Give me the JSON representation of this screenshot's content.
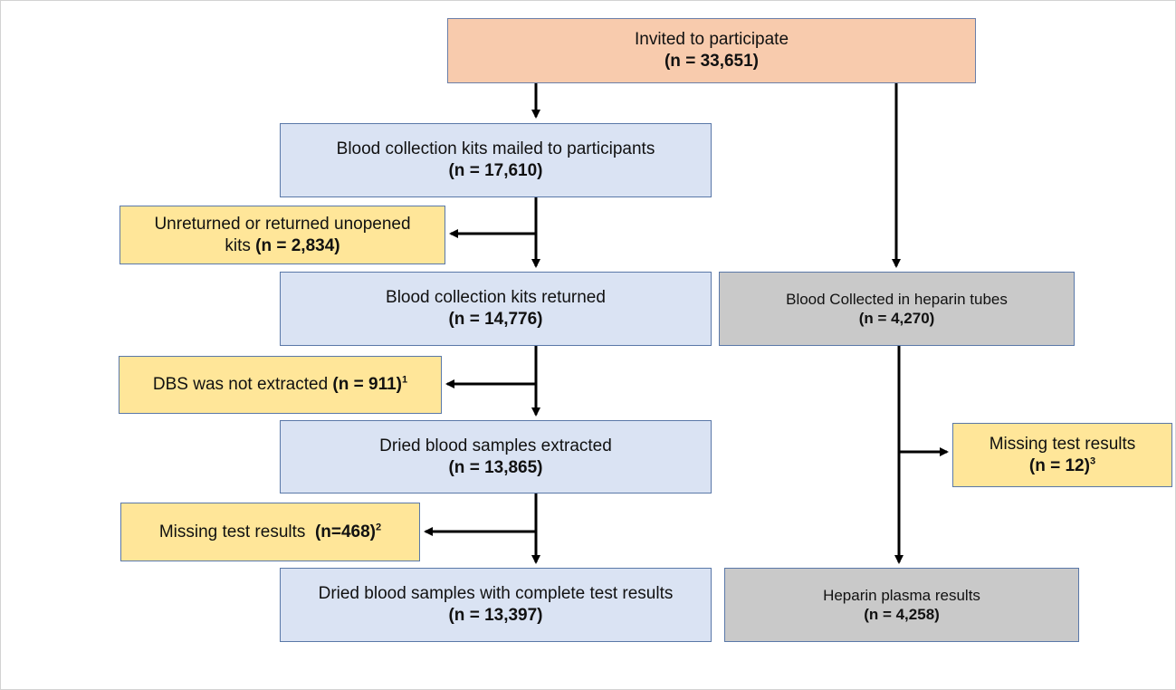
{
  "boxes": {
    "invited": {
      "line1": "Invited to participate",
      "line2": "(n = 33,651)"
    },
    "kits_mailed": {
      "line1": "Blood collection kits mailed to participants",
      "line2": "(n = 17,610)"
    },
    "unreturned": {
      "line1": "Unreturned or returned unopened",
      "line2_prefix": "kits ",
      "line2_bold": "(n = 2,834)"
    },
    "kits_returned": {
      "line1": "Blood collection kits returned",
      "line2": "(n = 14,776)"
    },
    "dbs_not_extracted": {
      "text": "DBS was not extracted ",
      "bold": "(n = 911)",
      "sup": "1"
    },
    "dried_extracted": {
      "line1": "Dried blood samples extracted",
      "line2": "(n = 13,865)"
    },
    "missing_dbs": {
      "text": "Missing test results  ",
      "bold": "(n=468)",
      "sup": "2"
    },
    "dried_complete": {
      "line1": "Dried blood samples with complete test results",
      "line2": "(n = 13,397)"
    },
    "heparin_collected": {
      "line1": "Blood Collected in heparin tubes",
      "line2": "(n = 4,270)"
    },
    "missing_heparin": {
      "line1": "Missing test results",
      "line2_bold": "(n = 12)",
      "sup": "3"
    },
    "heparin_results": {
      "line1": "Heparin plasma results",
      "line2": "(n = 4,258)"
    }
  },
  "colors": {
    "orange": "#f8cbad",
    "blue": "#dae3f3",
    "yellow": "#ffe699",
    "grey": "#c9c9c9",
    "arrow": "#000000"
  }
}
